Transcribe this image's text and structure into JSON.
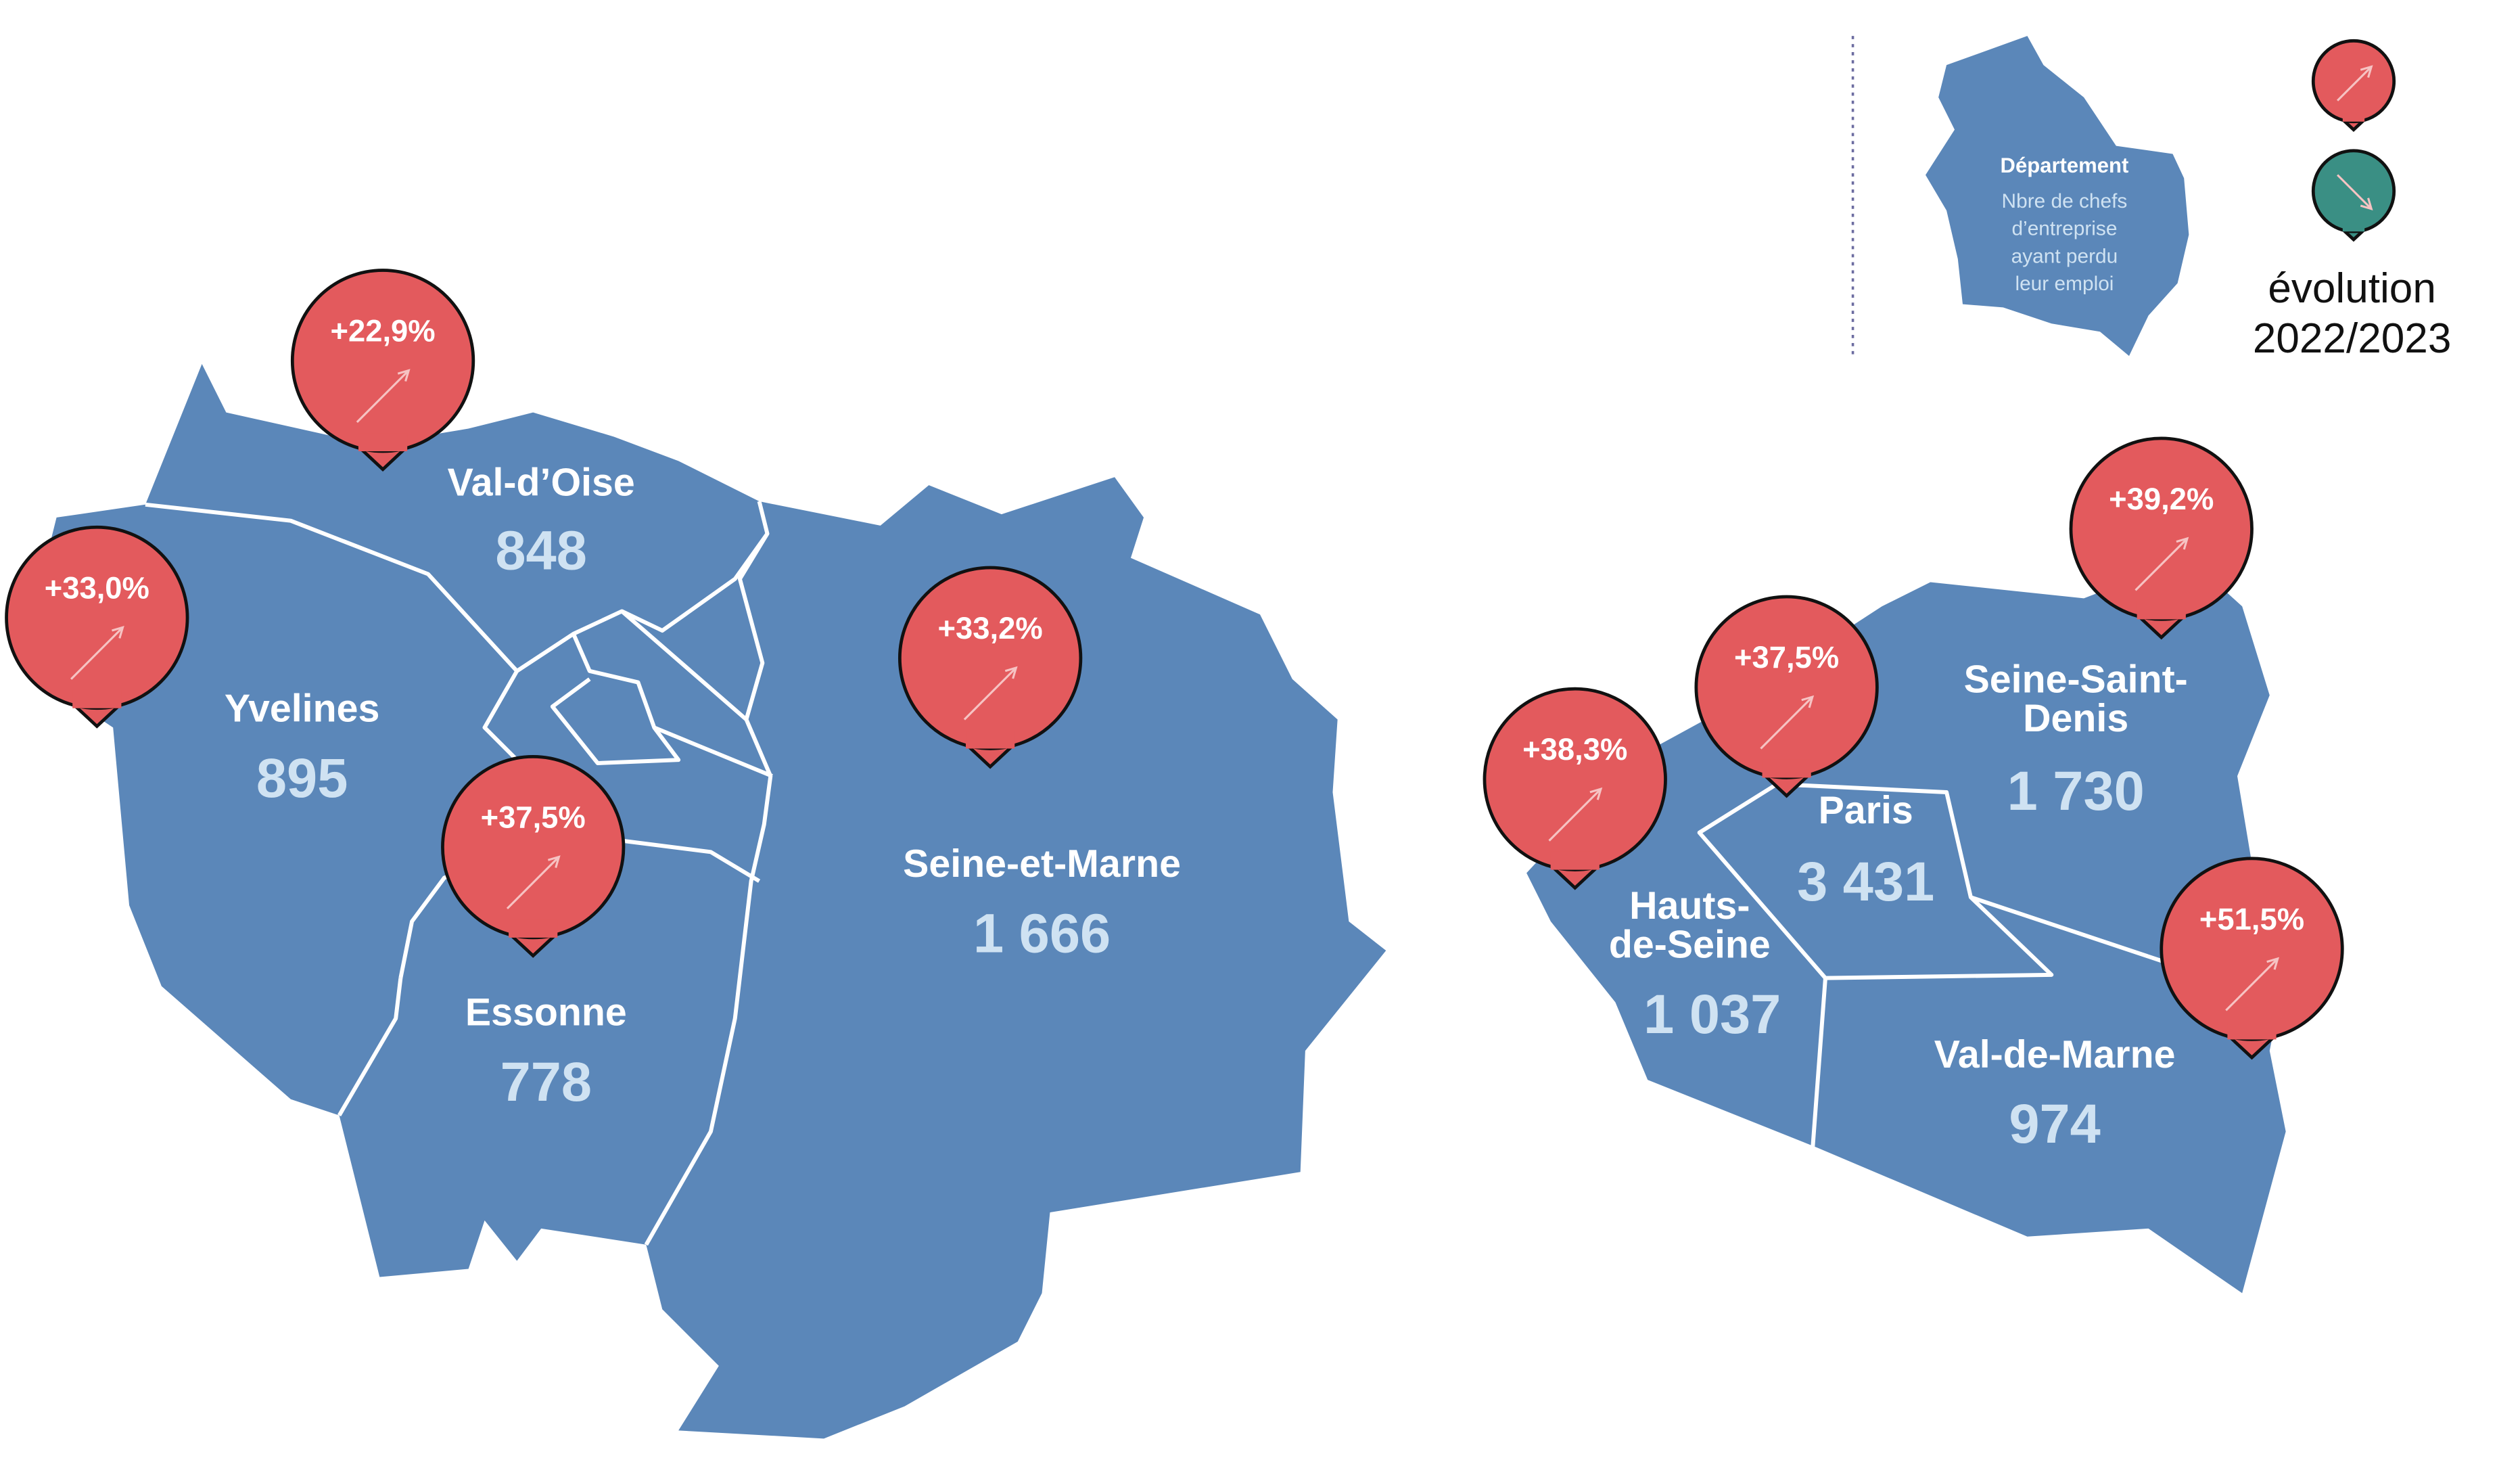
{
  "legend": {
    "title": "Département",
    "description": [
      "Nbre de chefs",
      "d’entreprise",
      "ayant perdu",
      "leur emploi"
    ],
    "evolution": [
      "évolution",
      "2022/2023"
    ]
  },
  "departments": [
    {
      "name": [
        "Val-d’Oise"
      ],
      "value": "848",
      "change": "+22,9%"
    },
    {
      "name": [
        "Yvelines"
      ],
      "value": "895",
      "change": "+33,0%"
    },
    {
      "name": [
        "Essonne"
      ],
      "value": "778",
      "change": "+37,5%"
    },
    {
      "name": [
        "Seine-et-Marne"
      ],
      "value": "1 666",
      "change": "+33,2%"
    },
    {
      "name": [
        "Hauts-",
        "de-Seine"
      ],
      "value": "1 037",
      "change": "+38,3%"
    },
    {
      "name": [
        "Paris"
      ],
      "value": "3 431",
      "change": "+37,5%"
    },
    {
      "name": [
        "Seine-Saint-",
        "Denis"
      ],
      "value": "1 730",
      "change": "+39,2%"
    },
    {
      "name": [
        "Val-de-Marne"
      ],
      "value": "974",
      "change": "+51,5%"
    }
  ]
}
